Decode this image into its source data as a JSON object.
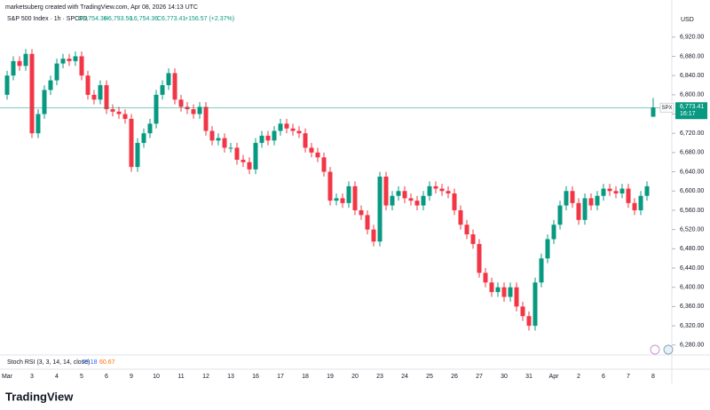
{
  "header": {
    "credit": "marketsuberg created with TradingView.com, Apr 08, 2026 14:13 UTC",
    "open": "O6,754.36",
    "high": "H6,793.50",
    "low": "L6,754.36",
    "close": "C6,773.41",
    "change": "+156.57 (+2.37%)",
    "currency": "USD",
    "symbol": "SPX",
    "last_price": "6,773.41",
    "countdown": "16:17"
  },
  "indicator": {
    "name": "Stoch RSI (3, 3, 14, 14, close)",
    "k": "79.18",
    "d": "60.67",
    "k_color": "#2962ff",
    "d_color": "#ff6d00"
  },
  "footer": {
    "brand": "TradingView"
  },
  "chart_data": {
    "type": "candlestick",
    "title": "S&P 500 Index · 1h · SPCFD",
    "up_color": "#089981",
    "down_color": "#f23645",
    "categories": [
      "Mar",
      null,
      null,
      null,
      "3",
      null,
      null,
      null,
      "4",
      null,
      null,
      null,
      "5",
      null,
      null,
      null,
      "6",
      null,
      null,
      null,
      "9",
      null,
      null,
      null,
      "10",
      null,
      null,
      null,
      "11",
      null,
      null,
      null,
      "12",
      null,
      null,
      null,
      "13",
      null,
      null,
      null,
      "16",
      null,
      null,
      null,
      "17",
      null,
      null,
      null,
      "18",
      null,
      null,
      null,
      "19",
      null,
      null,
      null,
      "20",
      null,
      null,
      null,
      "23",
      null,
      null,
      null,
      "24",
      null,
      null,
      null,
      "25",
      null,
      null,
      null,
      "26",
      null,
      null,
      null,
      "27",
      null,
      null,
      null,
      "30",
      null,
      null,
      null,
      "31",
      null,
      null,
      null,
      "Apr",
      null,
      null,
      null,
      "2",
      null,
      null,
      null,
      "6",
      null,
      null,
      null,
      "7",
      null,
      null,
      null,
      "8"
    ],
    "open": [
      6800,
      6840,
      6870,
      6860,
      6885,
      6720,
      6760,
      6810,
      6830,
      6865,
      6875,
      6870,
      6880,
      6840,
      6800,
      6790,
      6820,
      6770,
      6765,
      6760,
      6750,
      6650,
      6700,
      6720,
      6740,
      6800,
      6820,
      6845,
      6790,
      6775,
      6770,
      6760,
      6775,
      6725,
      6705,
      6710,
      6690,
      6690,
      6665,
      6660,
      6645,
      6700,
      6715,
      6705,
      6725,
      6740,
      6730,
      6725,
      6720,
      6690,
      6680,
      6670,
      6640,
      6580,
      6585,
      6575,
      6610,
      6560,
      6550,
      6520,
      6495,
      6630,
      6570,
      6590,
      6600,
      6585,
      6580,
      6570,
      6590,
      6610,
      6605,
      6600,
      6595,
      6560,
      6530,
      6510,
      6490,
      6430,
      6410,
      6390,
      6400,
      6380,
      6400,
      6360,
      6340,
      6320,
      6410,
      6460,
      6500,
      6530,
      6570,
      6600,
      6575,
      6540,
      6585,
      6570,
      6590,
      6605,
      6600,
      6595,
      6605,
      6575,
      6560,
      6590,
      6754.36
    ],
    "high": [
      6850,
      6880,
      6880,
      6895,
      6895,
      6770,
      6820,
      6840,
      6875,
      6885,
      6885,
      6890,
      6890,
      6850,
      6810,
      6830,
      6830,
      6780,
      6775,
      6770,
      6760,
      6710,
      6730,
      6750,
      6810,
      6830,
      6855,
      6855,
      6800,
      6785,
      6780,
      6785,
      6785,
      6735,
      6720,
      6720,
      6700,
      6700,
      6675,
      6670,
      6710,
      6725,
      6725,
      6735,
      6750,
      6750,
      6740,
      6735,
      6730,
      6700,
      6690,
      6680,
      6650,
      6595,
      6595,
      6620,
      6620,
      6570,
      6560,
      6530,
      6640,
      6640,
      6600,
      6610,
      6610,
      6595,
      6590,
      6600,
      6620,
      6620,
      6615,
      6610,
      6605,
      6570,
      6540,
      6520,
      6500,
      6440,
      6420,
      6410,
      6410,
      6410,
      6410,
      6370,
      6350,
      6420,
      6470,
      6510,
      6540,
      6580,
      6610,
      6610,
      6585,
      6595,
      6595,
      6600,
      6615,
      6615,
      6610,
      6615,
      6615,
      6585,
      6600,
      6620,
      6793.5
    ],
    "low": [
      6790,
      6830,
      6850,
      6850,
      6710,
      6710,
      6750,
      6800,
      6820,
      6855,
      6860,
      6860,
      6830,
      6790,
      6780,
      6780,
      6760,
      6755,
      6750,
      6740,
      6640,
      6640,
      6690,
      6710,
      6730,
      6790,
      6810,
      6780,
      6765,
      6760,
      6750,
      6750,
      6715,
      6695,
      6695,
      6680,
      6680,
      6655,
      6650,
      6635,
      6635,
      6690,
      6695,
      6695,
      6715,
      6720,
      6715,
      6710,
      6680,
      6670,
      6660,
      6630,
      6570,
      6570,
      6565,
      6565,
      6550,
      6540,
      6510,
      6485,
      6485,
      6560,
      6560,
      6580,
      6575,
      6570,
      6560,
      6560,
      6580,
      6595,
      6590,
      6585,
      6550,
      6520,
      6500,
      6480,
      6420,
      6400,
      6380,
      6380,
      6370,
      6370,
      6350,
      6330,
      6310,
      6310,
      6400,
      6450,
      6490,
      6520,
      6560,
      6565,
      6530,
      6530,
      6560,
      6560,
      6580,
      6590,
      6585,
      6585,
      6565,
      6550,
      6550,
      6580,
      6754.36
    ],
    "close": [
      6840,
      6870,
      6860,
      6885,
      6720,
      6760,
      6810,
      6830,
      6865,
      6875,
      6870,
      6880,
      6840,
      6800,
      6790,
      6820,
      6770,
      6765,
      6760,
      6750,
      6650,
      6700,
      6720,
      6740,
      6800,
      6820,
      6845,
      6790,
      6775,
      6770,
      6760,
      6775,
      6725,
      6705,
      6710,
      6690,
      6690,
      6665,
      6660,
      6645,
      6700,
      6715,
      6705,
      6725,
      6740,
      6730,
      6725,
      6720,
      6690,
      6680,
      6670,
      6640,
      6580,
      6585,
      6575,
      6610,
      6560,
      6550,
      6520,
      6495,
      6630,
      6570,
      6590,
      6600,
      6585,
      6580,
      6570,
      6590,
      6610,
      6605,
      6600,
      6595,
      6560,
      6530,
      6510,
      6490,
      6430,
      6410,
      6390,
      6400,
      6380,
      6400,
      6360,
      6340,
      6320,
      6410,
      6460,
      6500,
      6530,
      6570,
      6600,
      6575,
      6540,
      6585,
      6570,
      6590,
      6605,
      6600,
      6595,
      6605,
      6575,
      6560,
      6590,
      6610,
      6773.41
    ],
    "ylim": [
      6263,
      6997
    ],
    "yticks": [
      {
        "value": 6280,
        "label": "6,280.00"
      },
      {
        "value": 6320,
        "label": "6,320.00"
      },
      {
        "value": 6360,
        "label": "6,360.00"
      },
      {
        "value": 6400,
        "label": "6,400.00"
      },
      {
        "value": 6440,
        "label": "6,440.00"
      },
      {
        "value": 6480,
        "label": "6,480.00"
      },
      {
        "value": 6520,
        "label": "6,520.00"
      },
      {
        "value": 6560,
        "label": "6,560.00"
      },
      {
        "value": 6600,
        "label": "6,600.00"
      },
      {
        "value": 6640,
        "label": "6,640.00"
      },
      {
        "value": 6680,
        "label": "6,680.00"
      },
      {
        "value": 6720,
        "label": "6,720.00"
      },
      {
        "value": 6760,
        "label": "6,760.00"
      },
      {
        "value": 6800,
        "label": "6,800.00"
      },
      {
        "value": 6840,
        "label": "6,840.00"
      },
      {
        "value": 6880,
        "label": "6,880.00"
      },
      {
        "value": 6920,
        "label": "6,920.00"
      }
    ]
  }
}
